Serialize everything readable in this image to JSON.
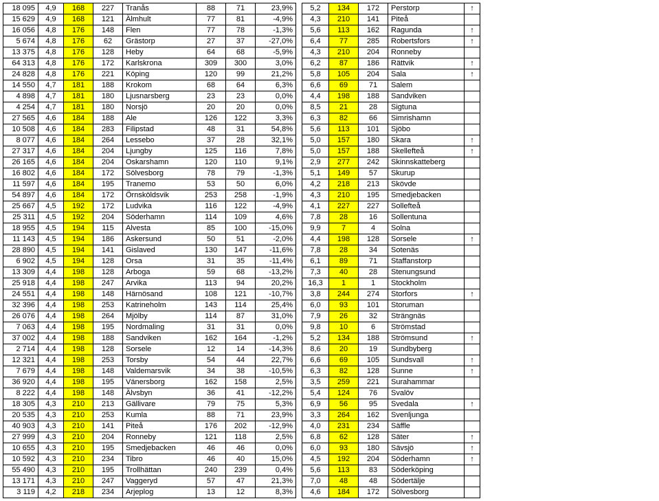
{
  "highlight_color": "#ffff00",
  "arrow_up": "↑",
  "left": [
    [
      "18 095",
      "4,9",
      "168",
      "227",
      "Tranås",
      "88",
      "71",
      "23,9%"
    ],
    [
      "15 629",
      "4,9",
      "168",
      "121",
      "Älmhult",
      "77",
      "81",
      "-4,9%"
    ],
    [
      "16 056",
      "4,8",
      "176",
      "148",
      "Flen",
      "77",
      "78",
      "-1,3%"
    ],
    [
      "5 674",
      "4,8",
      "176",
      "62",
      "Grästorp",
      "27",
      "37",
      "-27,0%"
    ],
    [
      "13 375",
      "4,8",
      "176",
      "128",
      "Heby",
      "64",
      "68",
      "-5,9%"
    ],
    [
      "64 313",
      "4,8",
      "176",
      "172",
      "Karlskrona",
      "309",
      "300",
      "3,0%"
    ],
    [
      "24 828",
      "4,8",
      "176",
      "221",
      "Köping",
      "120",
      "99",
      "21,2%"
    ],
    [
      "14 550",
      "4,7",
      "181",
      "188",
      "Krokom",
      "68",
      "64",
      "6,3%"
    ],
    [
      "4 898",
      "4,7",
      "181",
      "180",
      "Ljusnarsberg",
      "23",
      "23",
      "0,0%"
    ],
    [
      "4 254",
      "4,7",
      "181",
      "180",
      "Norsjö",
      "20",
      "20",
      "0,0%"
    ],
    [
      "27 565",
      "4,6",
      "184",
      "188",
      "Ale",
      "126",
      "122",
      "3,3%"
    ],
    [
      "10 508",
      "4,6",
      "184",
      "283",
      "Filipstad",
      "48",
      "31",
      "54,8%"
    ],
    [
      "8 077",
      "4,6",
      "184",
      "264",
      "Lessebo",
      "37",
      "28",
      "32,1%"
    ],
    [
      "27 317",
      "4,6",
      "184",
      "204",
      "Ljungby",
      "125",
      "116",
      "7,8%"
    ],
    [
      "26 165",
      "4,6",
      "184",
      "204",
      "Oskarshamn",
      "120",
      "110",
      "9,1%"
    ],
    [
      "16 802",
      "4,6",
      "184",
      "172",
      "Sölvesborg",
      "78",
      "79",
      "-1,3%"
    ],
    [
      "11 597",
      "4,6",
      "184",
      "195",
      "Tranemo",
      "53",
      "50",
      "6,0%"
    ],
    [
      "54 897",
      "4,6",
      "184",
      "172",
      "Örnsköldsvik",
      "253",
      "258",
      "-1,9%"
    ],
    [
      "25 667",
      "4,5",
      "192",
      "172",
      "Ludvika",
      "116",
      "122",
      "-4,9%"
    ],
    [
      "25 311",
      "4,5",
      "192",
      "204",
      "Söderhamn",
      "114",
      "109",
      "4,6%"
    ],
    [
      "18 955",
      "4,5",
      "194",
      "115",
      "Alvesta",
      "85",
      "100",
      "-15,0%"
    ],
    [
      "11 143",
      "4,5",
      "194",
      "186",
      "Askersund",
      "50",
      "51",
      "-2,0%"
    ],
    [
      "28 890",
      "4,5",
      "194",
      "141",
      "Gislaved",
      "130",
      "147",
      "-11,6%"
    ],
    [
      "6 902",
      "4,5",
      "194",
      "128",
      "Orsa",
      "31",
      "35",
      "-11,4%"
    ],
    [
      "13 309",
      "4,4",
      "198",
      "128",
      "Arboga",
      "59",
      "68",
      "-13,2%"
    ],
    [
      "25 918",
      "4,4",
      "198",
      "247",
      "Arvika",
      "113",
      "94",
      "20,2%"
    ],
    [
      "24 551",
      "4,4",
      "198",
      "148",
      "Härnösand",
      "108",
      "121",
      "-10,7%"
    ],
    [
      "32 396",
      "4,4",
      "198",
      "253",
      "Katrineholm",
      "143",
      "114",
      "25,4%"
    ],
    [
      "26 076",
      "4,4",
      "198",
      "264",
      "Mjölby",
      "114",
      "87",
      "31,0%"
    ],
    [
      "7 063",
      "4,4",
      "198",
      "195",
      "Nordmaling",
      "31",
      "31",
      "0,0%"
    ],
    [
      "37 002",
      "4,4",
      "198",
      "188",
      "Sandviken",
      "162",
      "164",
      "-1,2%"
    ],
    [
      "2 714",
      "4,4",
      "198",
      "128",
      "Sorsele",
      "12",
      "14",
      "-14,3%"
    ],
    [
      "12 321",
      "4,4",
      "198",
      "253",
      "Torsby",
      "54",
      "44",
      "22,7%"
    ],
    [
      "7 679",
      "4,4",
      "198",
      "148",
      "Valdemarsvik",
      "34",
      "38",
      "-10,5%"
    ],
    [
      "36 920",
      "4,4",
      "198",
      "195",
      "Vänersborg",
      "162",
      "158",
      "2,5%"
    ],
    [
      "8 222",
      "4,4",
      "198",
      "148",
      "Älvsbyn",
      "36",
      "41",
      "-12,2%"
    ],
    [
      "18 305",
      "4,3",
      "210",
      "213",
      "Gällivare",
      "79",
      "75",
      "5,3%"
    ],
    [
      "20 535",
      "4,3",
      "210",
      "253",
      "Kumla",
      "88",
      "71",
      "23,9%"
    ],
    [
      "40 903",
      "4,3",
      "210",
      "141",
      "Piteå",
      "176",
      "202",
      "-12,9%"
    ],
    [
      "27 999",
      "4,3",
      "210",
      "204",
      "Ronneby",
      "121",
      "118",
      "2,5%"
    ],
    [
      "10 655",
      "4,3",
      "210",
      "195",
      "Smedjebacken",
      "46",
      "46",
      "0,0%"
    ],
    [
      "10 592",
      "4,3",
      "210",
      "234",
      "Tibro",
      "46",
      "40",
      "15,0%"
    ],
    [
      "55 490",
      "4,3",
      "210",
      "195",
      "Trollhättan",
      "240",
      "239",
      "0,4%"
    ],
    [
      "13 171",
      "4,3",
      "210",
      "247",
      "Vaggeryd",
      "57",
      "47",
      "21,3%"
    ],
    [
      "3 119",
      "4,2",
      "218",
      "234",
      "Arjeplog",
      "13",
      "12",
      "8,3%"
    ]
  ],
  "right": [
    [
      "5,2",
      "134",
      "172",
      "Perstorp",
      "up"
    ],
    [
      "4,3",
      "210",
      "141",
      "Piteå",
      ""
    ],
    [
      "5,6",
      "113",
      "162",
      "Ragunda",
      "up"
    ],
    [
      "6,4",
      "77",
      "285",
      "Robertsfors",
      "up"
    ],
    [
      "4,3",
      "210",
      "204",
      "Ronneby",
      ""
    ],
    [
      "6,2",
      "87",
      "186",
      "Rättvik",
      "up"
    ],
    [
      "5,8",
      "105",
      "204",
      "Sala",
      "up"
    ],
    [
      "6,6",
      "69",
      "71",
      "Salem",
      ""
    ],
    [
      "4,4",
      "198",
      "188",
      "Sandviken",
      ""
    ],
    [
      "8,5",
      "21",
      "28",
      "Sigtuna",
      ""
    ],
    [
      "6,3",
      "82",
      "66",
      "Simrishamn",
      ""
    ],
    [
      "5,6",
      "113",
      "101",
      "Sjöbo",
      ""
    ],
    [
      "5,0",
      "157",
      "180",
      "Skara",
      "up"
    ],
    [
      "5,0",
      "157",
      "188",
      "Skellefteå",
      "up"
    ],
    [
      "2,9",
      "277",
      "242",
      "Skinnskatteberg",
      ""
    ],
    [
      "5,1",
      "149",
      "57",
      "Skurup",
      ""
    ],
    [
      "4,2",
      "218",
      "213",
      "Skövde",
      ""
    ],
    [
      "4,3",
      "210",
      "195",
      "Smedjebacken",
      ""
    ],
    [
      "4,1",
      "227",
      "227",
      "Sollefteå",
      ""
    ],
    [
      "7,8",
      "28",
      "16",
      "Sollentuna",
      ""
    ],
    [
      "9,9",
      "7",
      "4",
      "Solna",
      ""
    ],
    [
      "4,4",
      "198",
      "128",
      "Sorsele",
      "up"
    ],
    [
      "7,8",
      "28",
      "34",
      "Sotenäs",
      ""
    ],
    [
      "6,1",
      "89",
      "71",
      "Staffanstorp",
      ""
    ],
    [
      "7,3",
      "40",
      "28",
      "Stenungsund",
      ""
    ],
    [
      "16,3",
      "1",
      "1",
      "Stockholm",
      ""
    ],
    [
      "3,8",
      "244",
      "274",
      "Storfors",
      "up"
    ],
    [
      "6,0",
      "93",
      "101",
      "Storuman",
      ""
    ],
    [
      "7,9",
      "26",
      "32",
      "Strängnäs",
      ""
    ],
    [
      "9,8",
      "10",
      "6",
      "Strömstad",
      ""
    ],
    [
      "5,2",
      "134",
      "188",
      "Strömsund",
      "up"
    ],
    [
      "8,6",
      "20",
      "19",
      "Sundbyberg",
      ""
    ],
    [
      "6,6",
      "69",
      "105",
      "Sundsvall",
      "up"
    ],
    [
      "6,3",
      "82",
      "128",
      "Sunne",
      "up"
    ],
    [
      "3,5",
      "259",
      "221",
      "Surahammar",
      ""
    ],
    [
      "5,4",
      "124",
      "76",
      "Svalöv",
      ""
    ],
    [
      "6,9",
      "56",
      "95",
      "Svedala",
      "up"
    ],
    [
      "3,3",
      "264",
      "162",
      "Svenljunga",
      ""
    ],
    [
      "4,0",
      "231",
      "234",
      "Säffle",
      ""
    ],
    [
      "6,8",
      "62",
      "128",
      "Säter",
      "up"
    ],
    [
      "6,0",
      "93",
      "180",
      "Sävsjö",
      "up"
    ],
    [
      "4,5",
      "192",
      "204",
      "Söderhamn",
      "up"
    ],
    [
      "5,6",
      "113",
      "83",
      "Söderköping",
      ""
    ],
    [
      "7,0",
      "48",
      "48",
      "Södertälje",
      ""
    ],
    [
      "4,6",
      "184",
      "172",
      "Sölvesborg",
      ""
    ]
  ]
}
